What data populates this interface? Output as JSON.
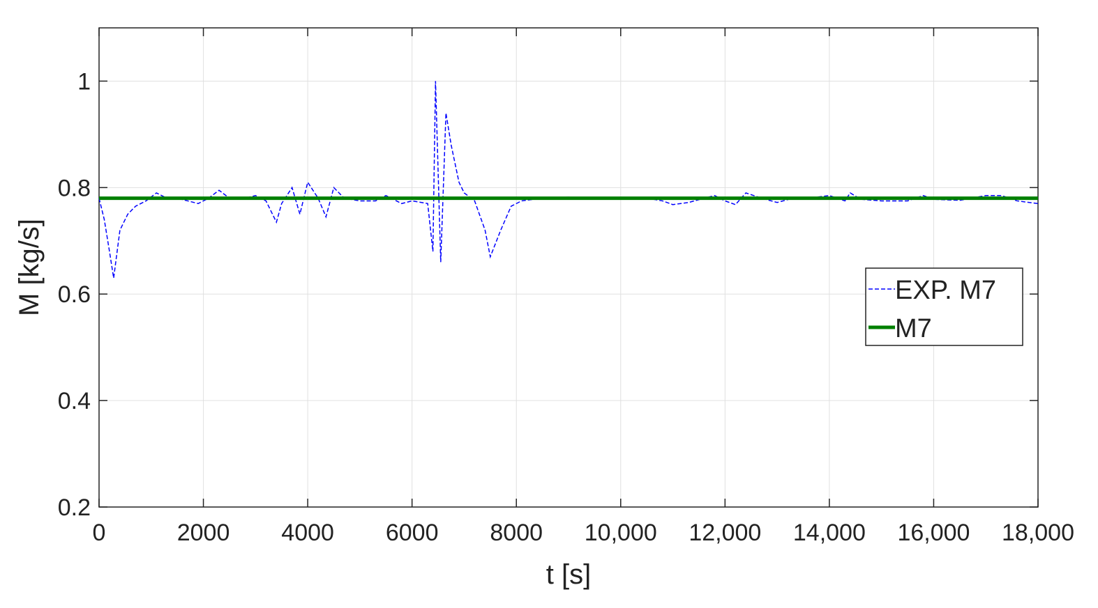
{
  "chart_data": {
    "type": "line",
    "xlabel": "t [s]",
    "ylabel": "M [kg/s]",
    "xlim": [
      0,
      18000
    ],
    "xticks": [
      0,
      2000,
      4000,
      6000,
      8000,
      {
        "value": 10000,
        "label": "10,000"
      },
      {
        "value": 12000,
        "label": "12,000"
      },
      {
        "value": 14000,
        "label": "14,000"
      },
      {
        "value": 16000,
        "label": "16,000"
      },
      {
        "value": 18000,
        "label": "18,000"
      }
    ],
    "ylim": [
      0.2,
      1.1
    ],
    "yticks": [
      0.2,
      0.4,
      0.6,
      0.8,
      1
    ],
    "grid": true,
    "legend": "east",
    "series": [
      {
        "name": "EXP. M7",
        "color": "#0000ff",
        "dash": true,
        "x": [
          0,
          100,
          200,
          280,
          400,
          550,
          700,
          900,
          1100,
          1300,
          1500,
          1700,
          1900,
          2100,
          2300,
          2500,
          2800,
          3000,
          3200,
          3400,
          3500,
          3700,
          3850,
          4000,
          4200,
          4350,
          4500,
          4700,
          5000,
          5300,
          5500,
          5800,
          6000,
          6300,
          6400,
          6450,
          6550,
          6650,
          6750,
          6900,
          7000,
          7200,
          7400,
          7500,
          7700,
          7900,
          8100,
          8500,
          9000,
          9500,
          10000,
          10500,
          10800,
          11000,
          11300,
          11600,
          11800,
          12000,
          12200,
          12400,
          12700,
          13000,
          13300,
          13600,
          14000,
          14300,
          14400,
          14600,
          15000,
          15500,
          15800,
          16000,
          16500,
          17000,
          17300,
          17600,
          18000
        ],
        "values": [
          0.78,
          0.74,
          0.68,
          0.63,
          0.72,
          0.75,
          0.765,
          0.775,
          0.79,
          0.78,
          0.78,
          0.775,
          0.77,
          0.78,
          0.795,
          0.78,
          0.78,
          0.785,
          0.775,
          0.735,
          0.77,
          0.8,
          0.75,
          0.81,
          0.78,
          0.745,
          0.8,
          0.78,
          0.775,
          0.775,
          0.785,
          0.77,
          0.775,
          0.77,
          0.68,
          1.0,
          0.66,
          0.94,
          0.88,
          0.81,
          0.79,
          0.775,
          0.72,
          0.67,
          0.72,
          0.765,
          0.775,
          0.78,
          0.782,
          0.78,
          0.778,
          0.78,
          0.775,
          0.768,
          0.772,
          0.78,
          0.785,
          0.775,
          0.768,
          0.79,
          0.78,
          0.772,
          0.78,
          0.78,
          0.785,
          0.775,
          0.79,
          0.778,
          0.775,
          0.775,
          0.785,
          0.778,
          0.776,
          0.785,
          0.785,
          0.775,
          0.77
        ]
      },
      {
        "name": "M7",
        "color": "#008000",
        "dash": false,
        "x": [
          0,
          18000
        ],
        "values": [
          0.78,
          0.78
        ]
      }
    ]
  }
}
